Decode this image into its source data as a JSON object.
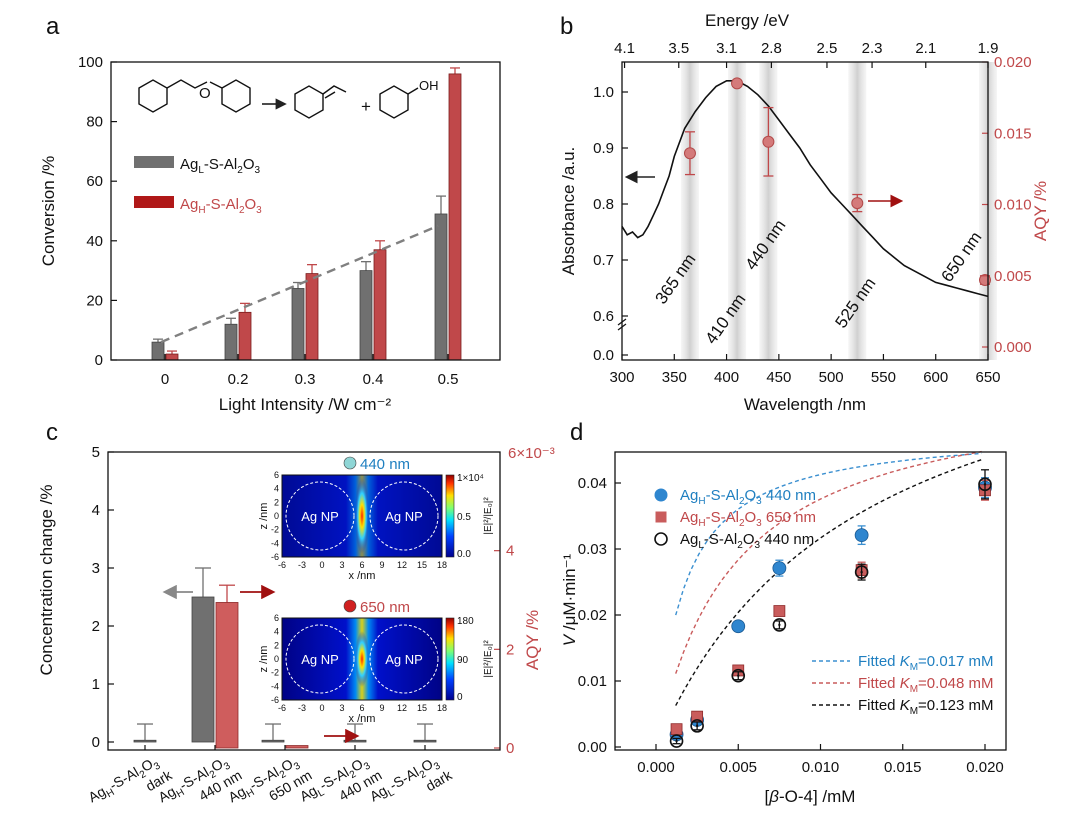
{
  "colors": {
    "grey": "#707070",
    "red": "#c0484a",
    "blue": "#1f7fc0",
    "black": "#111111",
    "band": "#d9d9d9"
  },
  "chart_data": [
    {
      "panel": "a",
      "type": "bar",
      "categories": [
        "0",
        "0.2",
        "0.3",
        "0.4",
        "0.5"
      ],
      "xlabel": "Light Intensity /W cm⁻²",
      "ylabel": "Conversion /%",
      "ylim": [
        0,
        100
      ],
      "yticks": [
        "0",
        "20",
        "40",
        "60",
        "80",
        "100"
      ],
      "series": [
        {
          "name": "AgL-S-Al2O3",
          "label_main": "Ag",
          "label_sub": "L",
          "label_rest": "-S-Al",
          "label_sub2": "2",
          "label_rest2": "O",
          "label_sub3": "3",
          "values": [
            6,
            12,
            24,
            30,
            49
          ],
          "errors": [
            1,
            2,
            2,
            3,
            6
          ]
        },
        {
          "name": "AgH-S-Al2O3",
          "label_main": "Ag",
          "label_sub": "H",
          "label_rest": "-S-Al",
          "label_sub2": "2",
          "label_rest2": "O",
          "label_sub3": "3",
          "values": [
            2,
            16,
            29,
            37,
            96
          ],
          "errors": [
            1,
            3,
            3,
            3,
            2
          ]
        }
      ],
      "trend": {
        "from": [
          0,
          6
        ],
        "to": [
          0.5,
          45
        ]
      },
      "scheme_label": "OH"
    },
    {
      "panel": "b",
      "type": "line",
      "xlabel": "Wavelength /nm",
      "ylabel_left": "Absorbance /a.u.",
      "ylabel_right": "AQY /%",
      "xlabel_top": "Energy /eV",
      "xlim": [
        300,
        650
      ],
      "xticks": [
        "300",
        "350",
        "400",
        "450",
        "500",
        "550",
        "600",
        "650"
      ],
      "yticks_left": [
        "0.0",
        "0.6",
        "0.7",
        "0.8",
        "0.9",
        "1.0"
      ],
      "yticks_right": [
        "0.000",
        "0.005",
        "0.010",
        "0.015",
        "0.020"
      ],
      "top_ticks": [
        "4.1",
        "3.5",
        "3.1",
        "2.8",
        "2.5",
        "2.3",
        "2.1",
        "1.9"
      ],
      "absorbance": {
        "x": [
          300,
          305,
          310,
          315,
          320,
          325,
          330,
          335,
          340,
          345,
          350,
          360,
          370,
          380,
          390,
          400,
          410,
          420,
          430,
          440,
          450,
          460,
          470,
          480,
          490,
          500,
          510,
          520,
          530,
          540,
          550,
          560,
          570,
          580,
          590,
          600,
          610,
          620,
          630,
          640,
          650
        ],
        "y": [
          0.76,
          0.745,
          0.75,
          0.74,
          0.745,
          0.76,
          0.78,
          0.8,
          0.825,
          0.85,
          0.885,
          0.935,
          0.965,
          0.99,
          1.01,
          1.02,
          1.02,
          1.01,
          0.995,
          0.975,
          0.95,
          0.925,
          0.9,
          0.87,
          0.845,
          0.82,
          0.8,
          0.78,
          0.76,
          0.74,
          0.72,
          0.705,
          0.69,
          0.68,
          0.67,
          0.66,
          0.655,
          0.65,
          0.645,
          0.64,
          0.635
        ]
      },
      "aqy": {
        "x": [
          365,
          410,
          440,
          525,
          650
        ],
        "y": [
          0.0136,
          0.0185,
          0.0144,
          0.0101,
          0.0047
        ],
        "err": [
          0.0015,
          0.0002,
          0.0024,
          0.0006,
          0.0003
        ]
      },
      "bands": [
        {
          "x": 365,
          "label": "365 nm"
        },
        {
          "x": 410,
          "label": "410 nm"
        },
        {
          "x": 440,
          "label": "440 nm"
        },
        {
          "x": 525,
          "label": "525 nm"
        },
        {
          "x": 650,
          "label": "650 nm"
        }
      ]
    },
    {
      "panel": "c",
      "type": "bar",
      "ylabel_left": "Concentration change /%",
      "ylabel_right": "AQY /%",
      "right_exp": "6×10⁻³",
      "ylim": [
        0,
        5
      ],
      "yticks_left": [
        "0",
        "1",
        "2",
        "3",
        "4",
        "5"
      ],
      "yticks_right": [
        "0",
        "2",
        "4"
      ],
      "categories": [
        {
          "l1": "Ag",
          "s1": "H",
          "t1": "-S-Al",
          "s2": "2",
          "t2": "O",
          "s3": "3",
          "l2": "dark"
        },
        {
          "l1": "Ag",
          "s1": "H",
          "t1": "-S-Al",
          "s2": "2",
          "t2": "O",
          "s3": "3",
          "l2": "440 nm"
        },
        {
          "l1": "Ag",
          "s1": "H",
          "t1": "-S-Al",
          "s2": "2",
          "t2": "O",
          "s3": "3",
          "l2": "650 nm"
        },
        {
          "l1": "Ag",
          "s1": "L",
          "t1": "-S-Al",
          "s2": "2",
          "t2": "O",
          "s3": "3",
          "l2": "440 nm"
        },
        {
          "l1": "Ag",
          "s1": "L",
          "t1": "-S-Al",
          "s2": "2",
          "t2": "O",
          "s3": "3",
          "l2": "dark"
        }
      ],
      "conc": [
        0.03,
        2.5,
        0.03,
        0.03,
        0.03
      ],
      "conc_err": [
        0.28,
        0.5,
        0.28,
        0.28,
        0.28
      ],
      "aqy_pct": [
        null,
        2.95,
        0.05,
        null,
        null
      ],
      "aqy_err": [
        null,
        0.35,
        0,
        null,
        null
      ],
      "insets": [
        {
          "title": "440 nm",
          "title_color": "#1f7fc0",
          "cbar_top": "1×10⁴",
          "cbar_mid": "0.5",
          "cbar_bot": "0.0"
        },
        {
          "title": "650 nm",
          "title_color": "#c0484a",
          "cbar_top": "180",
          "cbar_mid": "90",
          "cbar_bot": "0"
        }
      ],
      "inset_particle_label": "Ag NP",
      "inset_xlabel": "x /nm",
      "inset_ylabel": "z /nm",
      "inset_cbar_label": "|E|²/|E₀|²",
      "inset_xticks": [
        "-6",
        "-3",
        "0",
        "3",
        "6",
        "9",
        "12",
        "15",
        "18"
      ],
      "inset_yticks": [
        "6",
        "4",
        "2",
        "0",
        "-2",
        "-4",
        "-6"
      ]
    },
    {
      "panel": "d",
      "type": "scatter",
      "xlabel_main": "[",
      "xlabel_italic": "β",
      "xlabel_rest": "-O-4] /mM",
      "ylabel_italic": "V",
      "ylabel_rest": " /μM·min⁻¹",
      "xlim": [
        -0.0025,
        0.0225
      ],
      "ylim": [
        0,
        0.045
      ],
      "xticks": [
        "0.000",
        "0.005",
        "0.010",
        "0.015",
        "0.020"
      ],
      "yticks": [
        "0.00",
        "0.01",
        "0.02",
        "0.03",
        "0.04"
      ],
      "series": [
        {
          "name": "AgH-S-Al2O3 440 nm",
          "sub": "H",
          "wl": "440 nm",
          "x": [
            0.00125,
            0.0025,
            0.005,
            0.0075,
            0.0125,
            0.02
          ],
          "y": [
            0.0019,
            0.0041,
            0.0183,
            0.0271,
            0.0321,
            0.0393
          ],
          "err": [
            0.0005,
            0.0006,
            0.0006,
            0.0012,
            0.0014,
            0.0015
          ]
        },
        {
          "name": "AgH-S-Al2O3 650 nm",
          "sub": "H",
          "wl": "650 nm",
          "x": [
            0.00125,
            0.0025,
            0.005,
            0.0075,
            0.0125,
            0.02
          ],
          "y": [
            0.0027,
            0.0046,
            0.0116,
            0.0206,
            0.0268,
            0.0389
          ],
          "err": [
            0.0005,
            0.0006,
            0.0006,
            0.0006,
            0.0012,
            0.0015
          ]
        },
        {
          "name": "AgL-S-Al2O3 440 nm",
          "sub": "L",
          "wl": "440 nm",
          "x": [
            0.00125,
            0.0025,
            0.005,
            0.0075,
            0.0125,
            0.02
          ],
          "y": [
            0.0009,
            0.0032,
            0.0108,
            0.0185,
            0.0265,
            0.0398
          ],
          "err": [
            0.0004,
            0.0006,
            0.0006,
            0.0006,
            0.0012,
            0.0022
          ]
        }
      ],
      "fits": [
        {
          "label": "Fitted ",
          "km": "K",
          "kmsub": "M",
          "value": "=0.017 mM",
          "vmax": 0.0483,
          "km_val": 0.017
        },
        {
          "label": "Fitted ",
          "km": "K",
          "kmsub": "M",
          "value": "=0.048 mM",
          "vmax": 0.0556,
          "km_val": 0.048
        },
        {
          "label": "Fitted ",
          "km": "K",
          "kmsub": "M",
          "value": "=0.123 mM",
          "vmax": 0.0706,
          "km_val": 0.123
        }
      ]
    }
  ]
}
